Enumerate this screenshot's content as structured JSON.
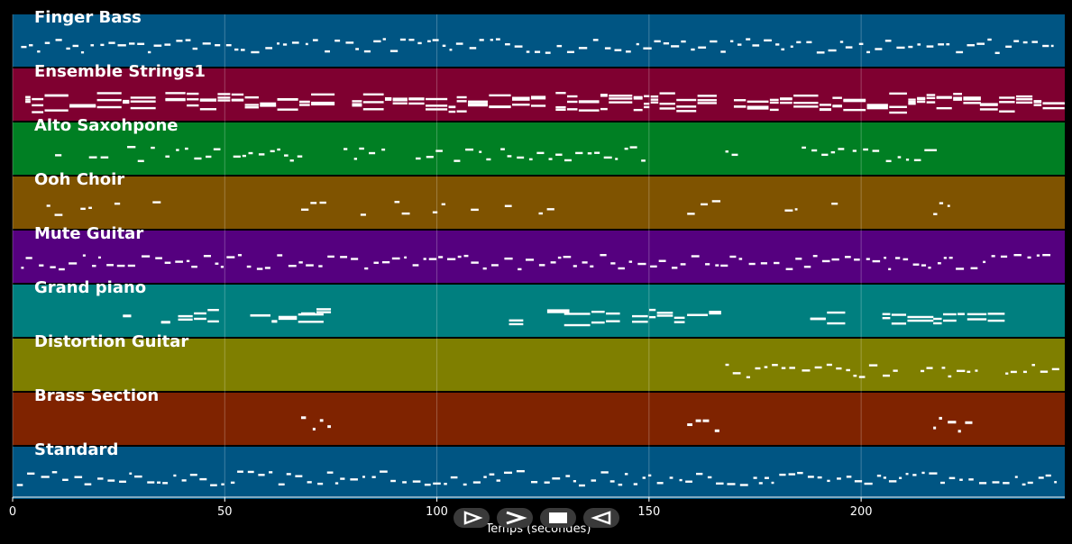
{
  "chart_data": {
    "type": "piano-roll",
    "xlabel": "Temps (secondes)",
    "xlim": [
      0,
      248
    ],
    "x_ticks": [
      0,
      50,
      100,
      150,
      200
    ],
    "grid": true,
    "tracks": [
      {
        "name": "Finger Bass",
        "color": "#005583"
      },
      {
        "name": "Ensemble Strings1",
        "color": "#7f0030"
      },
      {
        "name": "Alto Saxohpone",
        "color": "#007f23"
      },
      {
        "name": "Ooh Choir",
        "color": "#7f5300"
      },
      {
        "name": "Mute Guitar",
        "color": "#55007f"
      },
      {
        "name": "Grand piano",
        "color": "#007f7f"
      },
      {
        "name": "Distortion Guitar",
        "color": "#7f7f00"
      },
      {
        "name": "Brass Section",
        "color": "#7f2300"
      },
      {
        "name": "Standard",
        "color": "#005583"
      }
    ]
  },
  "controls": {
    "play_icon": "play-icon",
    "forward_icon": "forward-icon",
    "stop_icon": "stop-icon",
    "rewind_icon": "rewind-icon"
  }
}
